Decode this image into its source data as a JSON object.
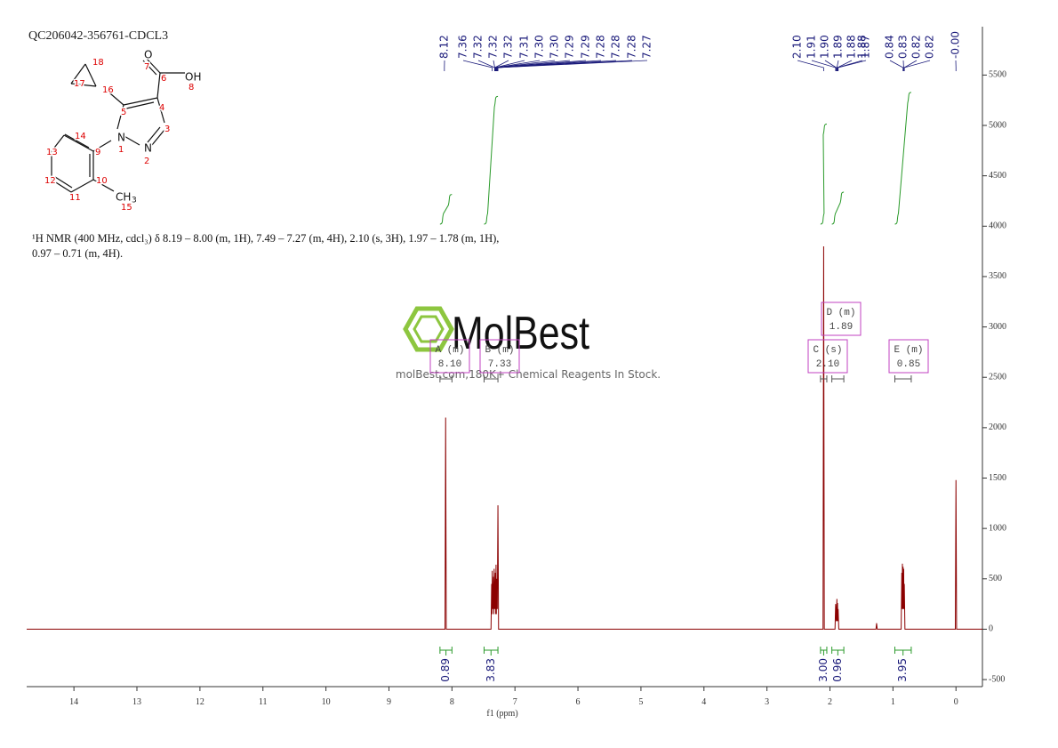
{
  "title": "QC206042-356761-CDCL3",
  "molecule": {
    "labels": [
      "O",
      "7",
      "6",
      "OH",
      "8",
      "18",
      "17",
      "16",
      "5",
      "4",
      "3",
      "N",
      "1",
      "N",
      "2",
      "14",
      "9",
      "13",
      "12",
      "11",
      "10",
      "CH",
      "3",
      "15"
    ]
  },
  "description": [
    "¹H NMR (400 MHz, cdcl₃) δ 8.19 – 8.00 (m, 1H), 7.49 – 7.27 (m, 4H), 2.10 (s, 3H), 1.97 – 1.78 (m, 1H),",
    "0.97 – 0.71 (m, 4H)."
  ],
  "watermark": {
    "brand": "MolBest",
    "tagline": "molBest.com,180K+ Chemical Reagents In Stock."
  },
  "chart_data": {
    "type": "line",
    "color": "#8b0000",
    "xlabel": "f1 (ppm)",
    "xlim": [
      14.75,
      -0.42
    ],
    "xticks": [
      14,
      13,
      12,
      11,
      10,
      9,
      8,
      7,
      6,
      5,
      4,
      3,
      2,
      1,
      0
    ],
    "ylim": [
      -570,
      5980
    ],
    "yticks": [
      -500,
      0,
      500,
      1000,
      1500,
      2000,
      2500,
      3000,
      3500,
      4000,
      4500,
      5000,
      5500
    ],
    "x": [
      14.75,
      8.11,
      8.1,
      8.09,
      7.38,
      7.37,
      7.365,
      7.36,
      7.35,
      7.34,
      7.335,
      7.33,
      7.32,
      7.31,
      7.305,
      7.3,
      7.295,
      7.29,
      7.28,
      7.27,
      7.26,
      2.11,
      2.1,
      2.09,
      1.92,
      1.91,
      1.9,
      1.89,
      1.885,
      1.88,
      1.875,
      1.87,
      1.86,
      1.27,
      1.26,
      1.25,
      0.87,
      0.86,
      0.855,
      0.85,
      0.845,
      0.84,
      0.835,
      0.83,
      0.825,
      0.82,
      0.81,
      0.01,
      0.0,
      -0.01,
      -0.42
    ],
    "values": [
      0,
      0,
      2100,
      0,
      0,
      450,
      150,
      580,
      200,
      520,
      150,
      600,
      200,
      560,
      150,
      640,
      150,
      500,
      200,
      1230,
      0,
      0,
      3800,
      0,
      0,
      250,
      80,
      300,
      80,
      260,
      80,
      200,
      0,
      0,
      60,
      0,
      0,
      560,
      200,
      650,
      200,
      620,
      200,
      600,
      200,
      450,
      0,
      0,
      1480,
      0,
      0
    ],
    "peaks": {
      "values": [
        8.12,
        7.36,
        7.32,
        7.32,
        7.32,
        7.31,
        7.3,
        7.3,
        7.29,
        7.29,
        7.28,
        7.28,
        7.28,
        7.27,
        2.1,
        1.91,
        1.9,
        1.89,
        1.88,
        1.88,
        1.87,
        0.84,
        0.83,
        0.82,
        0.82,
        0
      ],
      "value_labels": [
        "8.12",
        "7.36",
        "7.32",
        "7.32",
        "7.32",
        "7.31",
        "7.30",
        "7.30",
        "7.29",
        "7.29",
        "7.28",
        "7.28",
        "7.28",
        "7.27",
        "2.10",
        "1.91",
        "1.90",
        "1.89",
        "1.88",
        "1.88",
        "1.87",
        "0.84",
        "0.83",
        "0.82",
        "0.82",
        "-0.00"
      ]
    },
    "integrals": {
      "ranges": [
        [
          8.19,
          8.0
        ],
        [
          7.49,
          7.27
        ],
        [
          2.15,
          2.05
        ],
        [
          1.97,
          1.78
        ],
        [
          0.97,
          0.71
        ]
      ],
      "values": [
        0.89,
        3.83,
        3.0,
        0.96,
        3.95
      ],
      "value_labels": [
        "0.89",
        "3.83",
        "3.00",
        "0.96",
        "3.95"
      ]
    },
    "multiplets": {
      "labels": [
        "A (m)",
        "B (m)",
        "C (s)",
        "D (m)",
        "E (m)"
      ],
      "values": [
        8.1,
        7.33,
        2.1,
        1.89,
        0.85
      ],
      "value_labels": [
        "8.10",
        "7.33",
        "2.10",
        "1.89",
        "0.85"
      ]
    }
  }
}
